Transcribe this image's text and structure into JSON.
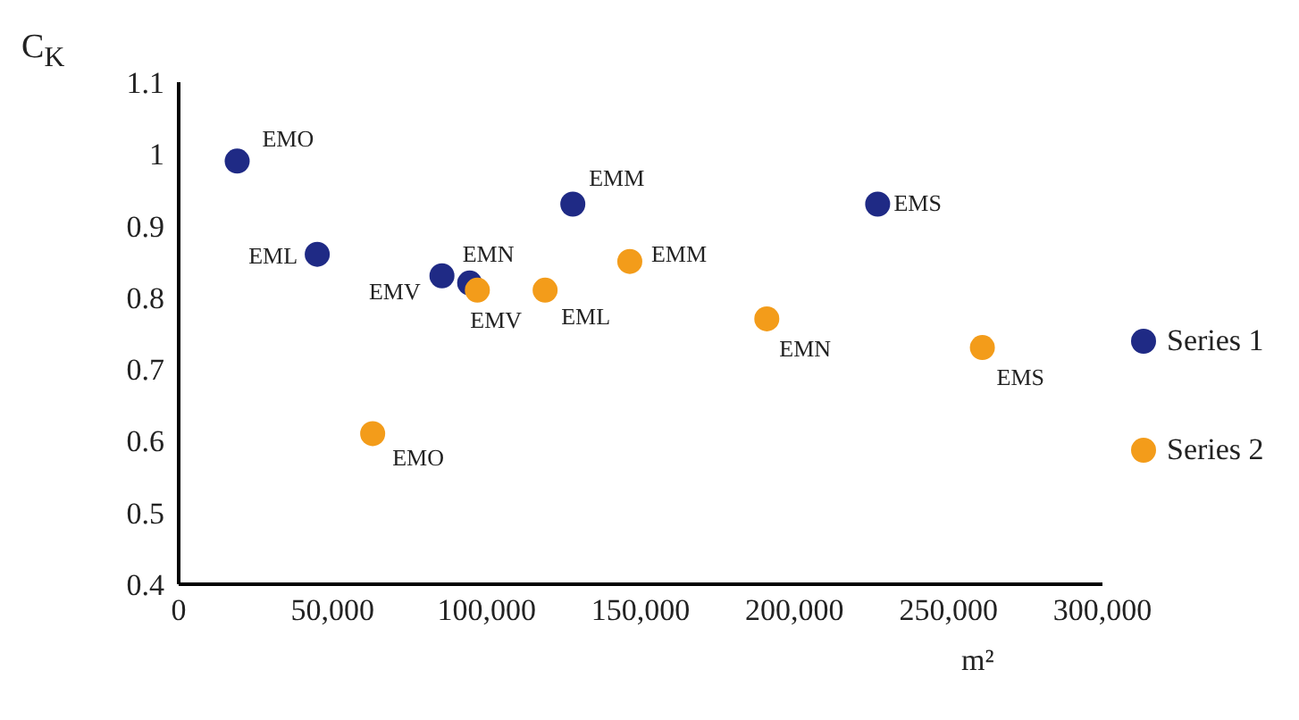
{
  "chart_data": {
    "type": "scatter",
    "xlabel": "m²",
    "ylabel": "C$_{K}$",
    "xlim": [
      0,
      300000
    ],
    "xticks": [
      {
        "value": 0,
        "label": "0"
      },
      {
        "value": 50000,
        "label": "50,000"
      },
      {
        "value": 100000,
        "label": "100,000"
      },
      {
        "value": 150000,
        "label": "150,000"
      },
      {
        "value": 200000,
        "label": "200,000"
      },
      {
        "value": 250000,
        "label": "250,000"
      },
      {
        "value": 300000,
        "label": "300,000"
      }
    ],
    "ylim": [
      0.4,
      1.1
    ],
    "yticks": [
      0.4,
      0.5,
      0.6,
      0.7,
      0.8,
      0.9,
      1,
      1.1
    ],
    "series": [
      {
        "name": "Series 1",
        "color": "#1f2a85",
        "x": [
          19000,
          45000,
          85500,
          94500,
          128000,
          227000
        ],
        "values": [
          0.99,
          0.86,
          0.83,
          0.82,
          0.93,
          0.93
        ]
      },
      {
        "name": "Series 2",
        "color": "#f39c1a",
        "x": [
          63000,
          97000,
          119000,
          146500,
          191000,
          261000
        ],
        "values": [
          0.61,
          0.81,
          0.81,
          0.85,
          0.77,
          0.73
        ]
      }
    ],
    "annotations": [
      {
        "text": "EMO",
        "x": 19000,
        "y": 0.99
      },
      {
        "text": "EML",
        "x": 45000,
        "y": 0.86
      },
      {
        "text": "EMV",
        "x": 85500,
        "y": 0.83
      },
      {
        "text": "EMN",
        "x": 94500,
        "y": 0.82
      },
      {
        "text": "EMM",
        "x": 128000,
        "y": 0.93
      },
      {
        "text": "EMS",
        "x": 227000,
        "y": 0.93
      },
      {
        "text": "EMO",
        "x": 63000,
        "y": 0.61
      },
      {
        "text": "EMV",
        "x": 97000,
        "y": 0.81
      },
      {
        "text": "EML",
        "x": 119000,
        "y": 0.81
      },
      {
        "text": "EMM",
        "x": 146500,
        "y": 0.85
      },
      {
        "text": "EMN",
        "x": 191000,
        "y": 0.77
      },
      {
        "text": "EMS",
        "x": 261000,
        "y": 0.73
      }
    ],
    "grid": false,
    "legend": "right",
    "marker": "circle"
  }
}
